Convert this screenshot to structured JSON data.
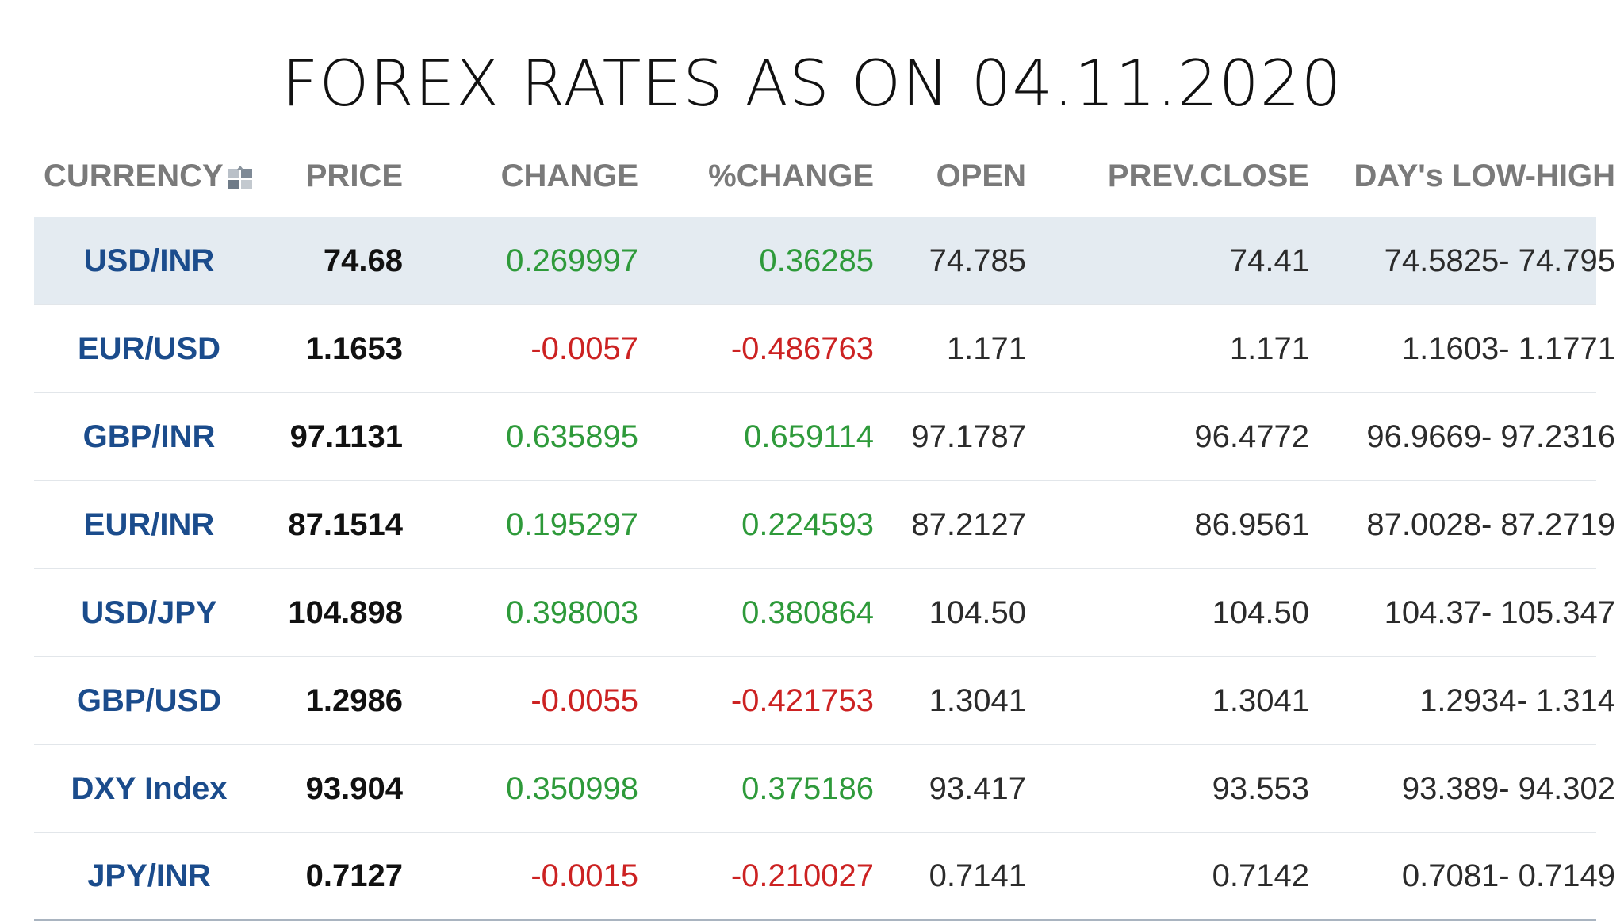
{
  "title": "FOREX RATES AS ON 04.11.2020",
  "colors": {
    "positive": "#2e9a3a",
    "negative": "#cc2222",
    "currency": "#1b4c8c",
    "header": "#7a7a7a",
    "highlight_row": "#e4ebf1"
  },
  "table": {
    "headers": {
      "currency": "CURRENCY",
      "price": "PRICE",
      "change": "CHANGE",
      "pchange": "%CHANGE",
      "open": "OPEN",
      "prev_close": "PREV.CLOSE",
      "range": "DAY's LOW-HIGH"
    },
    "header_icon": "sort-toggle-icon",
    "rows": [
      {
        "currency": "USD/INR",
        "price": "74.68",
        "change": "0.269997",
        "pchange": "0.36285",
        "open": "74.785",
        "prev_close": "74.41",
        "range": "74.5825- 74.795",
        "direction": "up"
      },
      {
        "currency": "EUR/USD",
        "price": "1.1653",
        "change": "-0.0057",
        "pchange": "-0.486763",
        "open": "1.171",
        "prev_close": "1.171",
        "range": "1.1603- 1.1771",
        "direction": "down"
      },
      {
        "currency": "GBP/INR",
        "price": "97.1131",
        "change": "0.635895",
        "pchange": "0.659114",
        "open": "97.1787",
        "prev_close": "96.4772",
        "range": "96.9669- 97.2316",
        "direction": "up"
      },
      {
        "currency": "EUR/INR",
        "price": "87.1514",
        "change": "0.195297",
        "pchange": "0.224593",
        "open": "87.2127",
        "prev_close": "86.9561",
        "range": "87.0028- 87.2719",
        "direction": "up"
      },
      {
        "currency": "USD/JPY",
        "price": "104.898",
        "change": "0.398003",
        "pchange": "0.380864",
        "open": "104.50",
        "prev_close": "104.50",
        "range": "104.37- 105.347",
        "direction": "up"
      },
      {
        "currency": "GBP/USD",
        "price": "1.2986",
        "change": "-0.0055",
        "pchange": "-0.421753",
        "open": "1.3041",
        "prev_close": "1.3041",
        "range": "1.2934- 1.314",
        "direction": "down"
      },
      {
        "currency": "DXY Index",
        "price": "93.904",
        "change": "0.350998",
        "pchange": "0.375186",
        "open": "93.417",
        "prev_close": "93.553",
        "range": "93.389- 94.302",
        "direction": "up"
      },
      {
        "currency": "JPY/INR",
        "price": "0.7127",
        "change": "-0.0015",
        "pchange": "-0.210027",
        "open": "0.7141",
        "prev_close": "0.7142",
        "range": "0.7081- 0.7149",
        "direction": "down"
      }
    ]
  }
}
